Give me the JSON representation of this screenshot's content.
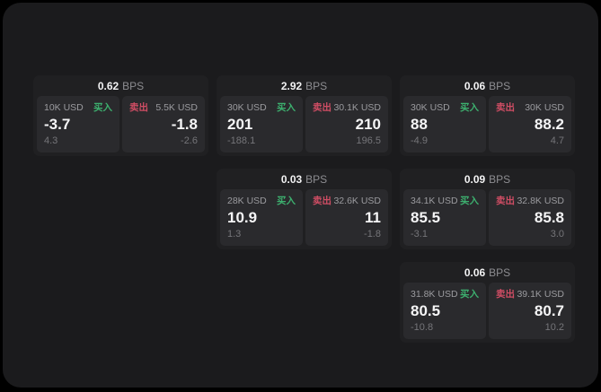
{
  "colors": {
    "buy_green": "#3db06f",
    "sell_red": "#cf4d64",
    "panel_bg": "#1b1b1d",
    "card_bg": "#202022",
    "pane_bg": "#2a2a2d"
  },
  "cards": [
    {
      "bps_value": "0.62",
      "bps_unit": "BPS",
      "buy": {
        "label": "买入",
        "amount": "10K USD",
        "value": "-3.7",
        "sub_value": "4.3"
      },
      "sell": {
        "label": "卖出",
        "amount": "5.5K USD",
        "value": "-1.8",
        "sub_value": "-2.6"
      }
    },
    {
      "bps_value": "2.92",
      "bps_unit": "BPS",
      "buy": {
        "label": "买入",
        "amount": "30K USD",
        "value": "201",
        "sub_value": "-188.1"
      },
      "sell": {
        "label": "卖出",
        "amount": "30.1K USD",
        "value": "210",
        "sub_value": "196.5"
      }
    },
    {
      "bps_value": "0.06",
      "bps_unit": "BPS",
      "buy": {
        "label": "买入",
        "amount": "30K USD",
        "value": "88",
        "sub_value": "-4.9"
      },
      "sell": {
        "label": "卖出",
        "amount": "30K USD",
        "value": "88.2",
        "sub_value": "4.7"
      }
    },
    {
      "bps_value": "0.03",
      "bps_unit": "BPS",
      "buy": {
        "label": "买入",
        "amount": "28K USD",
        "value": "10.9",
        "sub_value": "1.3"
      },
      "sell": {
        "label": "卖出",
        "amount": "32.6K USD",
        "value": "11",
        "sub_value": "-1.8"
      }
    },
    {
      "bps_value": "0.09",
      "bps_unit": "BPS",
      "buy": {
        "label": "买入",
        "amount": "34.1K USD",
        "value": "85.5",
        "sub_value": "-3.1"
      },
      "sell": {
        "label": "卖出",
        "amount": "32.8K USD",
        "value": "85.8",
        "sub_value": "3.0"
      }
    },
    {
      "bps_value": "0.06",
      "bps_unit": "BPS",
      "buy": {
        "label": "买入",
        "amount": "31.8K USD",
        "value": "80.5",
        "sub_value": "-10.8"
      },
      "sell": {
        "label": "卖出",
        "amount": "39.1K USD",
        "value": "80.7",
        "sub_value": "10.2"
      }
    }
  ]
}
